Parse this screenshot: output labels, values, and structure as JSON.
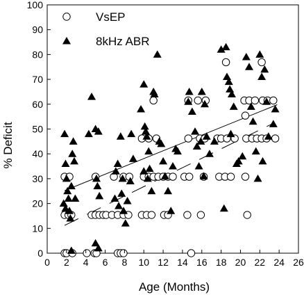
{
  "chart_data": {
    "type": "scatter",
    "xlabel": "Age (Months)",
    "ylabel": "% Deficit",
    "xlim": [
      0,
      26
    ],
    "ylim": [
      0,
      100
    ],
    "xticks": [
      "0",
      "2",
      "4",
      "6",
      "8",
      "10",
      "12",
      "14",
      "16",
      "18",
      "20",
      "22",
      "24",
      "26"
    ],
    "yticks": [
      "0",
      "10",
      "20",
      "30",
      "40",
      "50",
      "60",
      "70",
      "80",
      "90",
      "100"
    ],
    "legend_position": "top-left",
    "series": [
      {
        "name": "VsEP",
        "marker": "open-circle",
        "color": "#000000",
        "points": [
          [
            1.8,
            0
          ],
          [
            2.0,
            0
          ],
          [
            2.6,
            0
          ],
          [
            4.1,
            0
          ],
          [
            4.9,
            0
          ],
          [
            5.1,
            0
          ],
          [
            7.3,
            0
          ],
          [
            7.6,
            0
          ],
          [
            7.9,
            0
          ],
          [
            14.9,
            0
          ],
          [
            1.8,
            15.4
          ],
          [
            2.2,
            15.4
          ],
          [
            2.5,
            15.4
          ],
          [
            4.6,
            15.4
          ],
          [
            5.0,
            15.4
          ],
          [
            5.4,
            15.4
          ],
          [
            5.8,
            15.4
          ],
          [
            6.1,
            15.4
          ],
          [
            6.7,
            15.4
          ],
          [
            7.3,
            15.4
          ],
          [
            7.9,
            15.4
          ],
          [
            8.4,
            15.4
          ],
          [
            9.8,
            15.4
          ],
          [
            10.3,
            15.4
          ],
          [
            10.8,
            15.4
          ],
          [
            12.1,
            15.4
          ],
          [
            12.5,
            15.4
          ],
          [
            14.5,
            15.4
          ],
          [
            15.9,
            15.4
          ],
          [
            20.7,
            15.4
          ],
          [
            1.8,
            30.8
          ],
          [
            2.3,
            30.8
          ],
          [
            5.0,
            30.8
          ],
          [
            6.9,
            30.8
          ],
          [
            7.9,
            30.8
          ],
          [
            8.5,
            30.8
          ],
          [
            10.0,
            30.8
          ],
          [
            10.5,
            30.8
          ],
          [
            11.0,
            30.8
          ],
          [
            11.5,
            30.8
          ],
          [
            12.0,
            30.8
          ],
          [
            12.5,
            30.8
          ],
          [
            13.0,
            30.8
          ],
          [
            14.2,
            30.8
          ],
          [
            14.7,
            30.8
          ],
          [
            16.2,
            30.8
          ],
          [
            17.8,
            30.8
          ],
          [
            18.4,
            30.8
          ],
          [
            19.0,
            30.8
          ],
          [
            20.5,
            30.8
          ],
          [
            9.8,
            46.2
          ],
          [
            10.5,
            46.2
          ],
          [
            11.3,
            46.2
          ],
          [
            14.6,
            46.2
          ],
          [
            15.8,
            46.2
          ],
          [
            16.3,
            46.2
          ],
          [
            17.6,
            46.2
          ],
          [
            18.0,
            46.2
          ],
          [
            18.6,
            46.2
          ],
          [
            19.4,
            46.2
          ],
          [
            20.6,
            46.2
          ],
          [
            21.2,
            46.2
          ],
          [
            21.7,
            46.2
          ],
          [
            22.2,
            46.2
          ],
          [
            22.7,
            46.2
          ],
          [
            23.6,
            46.2
          ],
          [
            11.0,
            61.5
          ],
          [
            14.6,
            61.5
          ],
          [
            15.6,
            61.5
          ],
          [
            16.4,
            61.5
          ],
          [
            20.4,
            61.5
          ],
          [
            20.9,
            61.5
          ],
          [
            21.5,
            61.5
          ],
          [
            22.3,
            61.5
          ],
          [
            22.8,
            61.5
          ],
          [
            23.4,
            61.5
          ],
          [
            18.5,
            76.9
          ],
          [
            22.2,
            76.9
          ],
          [
            20.5,
            55.4
          ]
        ]
      },
      {
        "name": "8kHz ABR",
        "marker": "filled-triangle",
        "color": "#000000",
        "points": [
          [
            1.8,
            48
          ],
          [
            1.9,
            36
          ],
          [
            2.0,
            30
          ],
          [
            2.1,
            25
          ],
          [
            2.2,
            22
          ],
          [
            1.7,
            20
          ],
          [
            2.3,
            17
          ],
          [
            2.5,
            27
          ],
          [
            2.6,
            40
          ],
          [
            2.7,
            45
          ],
          [
            2.8,
            37
          ],
          [
            2.4,
            14
          ],
          [
            1.9,
            18
          ],
          [
            2.9,
            22
          ],
          [
            2.5,
            1
          ],
          [
            4.6,
            63
          ],
          [
            4.3,
            48
          ],
          [
            5.0,
            50
          ],
          [
            5.3,
            49
          ],
          [
            5.0,
            4
          ],
          [
            5.3,
            2
          ],
          [
            5.1,
            30
          ],
          [
            5.2,
            27
          ],
          [
            5.4,
            23
          ],
          [
            7.1,
            33
          ],
          [
            7.3,
            36
          ],
          [
            7.0,
            22
          ],
          [
            7.4,
            19
          ],
          [
            7.6,
            47
          ],
          [
            7.7,
            24
          ],
          [
            7.9,
            17
          ],
          [
            8.1,
            12
          ],
          [
            8.3,
            21
          ],
          [
            7.8,
            30
          ],
          [
            8.6,
            29
          ],
          [
            8.7,
            48
          ],
          [
            8.9,
            38
          ],
          [
            9.7,
            58
          ],
          [
            10.0,
            68
          ],
          [
            10.1,
            51
          ],
          [
            10.2,
            49
          ],
          [
            10.3,
            47
          ],
          [
            10.5,
            41
          ],
          [
            10.6,
            34
          ],
          [
            10.8,
            25
          ],
          [
            10.0,
            33
          ],
          [
            10.4,
            30
          ],
          [
            11.0,
            65
          ],
          [
            11.1,
            64
          ],
          [
            11.4,
            80
          ],
          [
            11.6,
            45
          ],
          [
            11.8,
            44
          ],
          [
            12.0,
            37
          ],
          [
            12.2,
            31
          ],
          [
            12.5,
            25
          ],
          [
            12.8,
            17
          ],
          [
            13.0,
            35
          ],
          [
            13.3,
            42
          ],
          [
            13.5,
            41
          ],
          [
            14.6,
            61
          ],
          [
            14.7,
            65
          ],
          [
            15.0,
            57
          ],
          [
            15.3,
            49
          ],
          [
            15.5,
            43
          ],
          [
            15.7,
            35
          ],
          [
            15.9,
            45
          ],
          [
            16.0,
            65
          ],
          [
            16.3,
            60
          ],
          [
            16.5,
            47
          ],
          [
            16.8,
            40
          ],
          [
            16.2,
            31
          ],
          [
            18.0,
            82
          ],
          [
            18.5,
            83
          ],
          [
            18.6,
            71
          ],
          [
            18.8,
            69
          ],
          [
            18.9,
            66
          ],
          [
            19.1,
            64
          ],
          [
            19.3,
            59
          ],
          [
            18.3,
            18
          ],
          [
            19.6,
            36
          ],
          [
            19.8,
            37
          ],
          [
            20.2,
            39
          ],
          [
            20.6,
            79
          ],
          [
            20.9,
            75
          ],
          [
            21.1,
            59
          ],
          [
            21.3,
            53
          ],
          [
            21.6,
            41
          ],
          [
            22.0,
            80
          ],
          [
            22.2,
            71
          ],
          [
            22.5,
            74
          ],
          [
            22.7,
            61
          ],
          [
            22.9,
            47
          ],
          [
            22.3,
            37
          ],
          [
            23.4,
            52
          ],
          [
            23.6,
            58
          ],
          [
            21.8,
            30
          ],
          [
            19.0,
            48
          ],
          [
            17.3,
            45
          ]
        ]
      }
    ],
    "regression_lines": [
      {
        "series": "8kHz ABR",
        "style": "solid",
        "x": [
          1.8,
          23.8
        ],
        "y": [
          25.2,
          59.8
        ]
      },
      {
        "series": "VsEP",
        "style": "dashed",
        "x": [
          1.8,
          23.5
        ],
        "y": [
          11.2,
          52.5
        ]
      }
    ]
  }
}
